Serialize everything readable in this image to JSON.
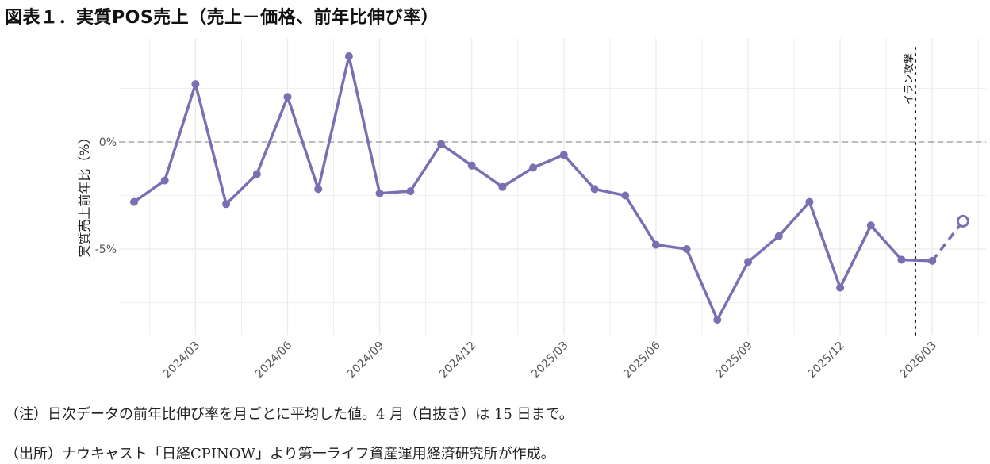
{
  "title": "図表１．実質POS売上（売上－価格、前年比伸び率）",
  "notes": {
    "note1": "（注）日次データの前年比伸び率を月ごとに平均した値。4 月（白抜き）は 15 日まで。",
    "note2": "（出所）ナウキャスト「日経CPINOW」より第一ライフ資産運用経済研究所が作成。"
  },
  "colors": {
    "line": "#7a6fb2",
    "grid": "#ebebeb",
    "zero_line": "#999999",
    "event_line": "#000000"
  },
  "chart_data": {
    "type": "line",
    "ylabel": "実質売上前年比（%）",
    "xlabel": "",
    "y_ticks": [
      {
        "value": 0,
        "label": "0%"
      },
      {
        "value": -5,
        "label": "-5%"
      }
    ],
    "ylim": [
      -9.0,
      4.7
    ],
    "x_ticks": [
      "2024/03",
      "2024/06",
      "2024/09",
      "2024/12",
      "2025/03",
      "2025/06",
      "2025/09",
      "2025/12",
      "2026/03"
    ],
    "x": [
      "2024/01",
      "2024/02",
      "2024/03",
      "2024/04",
      "2024/05",
      "2024/06",
      "2024/07",
      "2024/08",
      "2024/09",
      "2024/10",
      "2024/11",
      "2024/12",
      "2025/01",
      "2025/02",
      "2025/03",
      "2025/04",
      "2025/05",
      "2025/06",
      "2025/07",
      "2025/08",
      "2025/09",
      "2025/10",
      "2025/11",
      "2025/12",
      "2026/01",
      "2026/02",
      "2026/03",
      "2026/04"
    ],
    "values": [
      -2.8,
      -1.8,
      2.7,
      -2.9,
      -1.5,
      2.1,
      -2.2,
      4.0,
      -2.4,
      -2.3,
      -0.1,
      -1.1,
      -2.1,
      -1.2,
      -0.6,
      -2.2,
      -2.5,
      -4.8,
      -5.0,
      -8.3,
      -5.6,
      -4.4,
      -2.8,
      -6.8,
      -3.9,
      -5.5,
      -5.55,
      -3.7
    ],
    "open_marker_index": 27,
    "zero_line": true,
    "grid": true,
    "event": {
      "label": "イラン攻撃",
      "x": "2026/02",
      "offset": 0.45
    }
  }
}
